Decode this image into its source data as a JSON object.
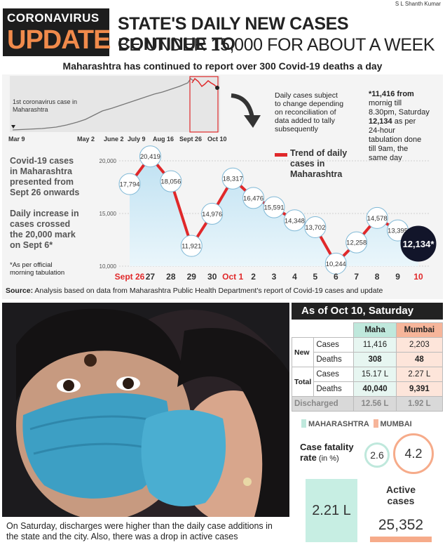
{
  "credit": "S L Shanth Kumar",
  "header": {
    "tag_top": "CORONAVIRUS",
    "tag_bottom": "UPDATE",
    "headline_1": "STATE'S DAILY NEW CASES CONTINUE TO",
    "headline_2": "BE UNDER 15,000 FOR ABOUT A WEEK"
  },
  "subtitle": "Maharashtra has continued to report over 300 Covid-19 deaths a day",
  "mini_chart": {
    "annotation": [
      "1st coronavirus case in",
      "Maharashtra"
    ],
    "axis_labels": [
      "Mar 9",
      "May 2",
      "June 2",
      "July 9",
      "Aug 16",
      "Sept 26",
      "Oct 10"
    ]
  },
  "notes": {
    "reconciliation": [
      "Daily cases subject",
      "to change depending",
      "on reconciliation of",
      "data added to tally",
      "subsequently"
    ],
    "footnote_a": [
      "*11,416 from",
      "mornig till",
      "8.30pm, Saturday"
    ],
    "footnote_b_bold": "12,134",
    "footnote_b": [
      " as per",
      "24-hour",
      "tabulation done",
      "till 9am, the",
      "same day"
    ],
    "left_1": [
      "Covid-19 cases",
      "in Maharashtra",
      "presented from",
      "Sept 26 onwards"
    ],
    "left_2": [
      "Daily increase in",
      "cases crossed",
      "the 20,000 mark",
      "on Sept 6*"
    ],
    "left_3": [
      "*As per official",
      "morning tabulation"
    ],
    "legend": [
      "Trend of daily",
      "cases in",
      "Maharashtra"
    ]
  },
  "chart_data": {
    "type": "line",
    "x": [
      "Sept 26",
      "27",
      "28",
      "29",
      "30",
      "Oct 1",
      "2",
      "3",
      "4",
      "5",
      "6",
      "7",
      "8",
      "9",
      "10"
    ],
    "series": [
      {
        "values": [
          17794,
          20419,
          18056,
          11921,
          14976,
          18317,
          16476,
          15591,
          14348,
          13702,
          10244,
          12258,
          14578,
          13395,
          12134
        ],
        "labels": [
          "17,794",
          "20,419",
          "18,056",
          "11,921",
          "14,976",
          "18,317",
          "16,476",
          "15,591",
          "14,348",
          "13,702",
          "10,244",
          "12,258",
          "14,578",
          "13,395",
          "12,134*"
        ]
      }
    ],
    "y_ticks": [
      "20,000",
      "15,000",
      "10,000"
    ],
    "y_tick_values": [
      20000,
      15000,
      10000
    ],
    "ylim": [
      10000,
      20000
    ],
    "line_color": "#e0282a"
  },
  "source": {
    "label": "Source:",
    "text": " Analysis based on data from Maharashtra Public Health Department's report of Covid-19 cases and update"
  },
  "caption": "On Saturday, discharges were higher than the daily case additions in the state and the city. Also, there was a drop in active cases",
  "stats": {
    "title": "As of Oct 10, Saturday",
    "col_maha": "Maha",
    "col_mumbai": "Mumbai",
    "row_new": "New",
    "row_total": "Total",
    "cases": "Cases",
    "deaths": "Deaths",
    "new_cases_maha": "11,416",
    "new_cases_mumbai": "2,203",
    "new_deaths_maha": "308",
    "new_deaths_mumbai": "48",
    "total_cases_maha": "15.17 L",
    "total_cases_mumbai": "2.27 L",
    "total_deaths_maha": "40,040",
    "total_deaths_mumbai": "9,391",
    "discharged": "Discharged",
    "discharged_maha": "12.56 L",
    "discharged_mumbai": "1.92 L"
  },
  "legend2": {
    "maha": "MAHARASHTRA",
    "mumbai": "MUMBAI",
    "maha_color": "#bfe8dc",
    "mumbai_color": "#f6b59a"
  },
  "cfr": {
    "label": "Case fatality",
    "label2": "rate",
    "unit": " (in %)",
    "maha": "2.6",
    "mumbai": "4.2"
  },
  "active": {
    "label": [
      "Active",
      "cases"
    ],
    "maha": "2.21 L",
    "mumbai": "25,352"
  }
}
